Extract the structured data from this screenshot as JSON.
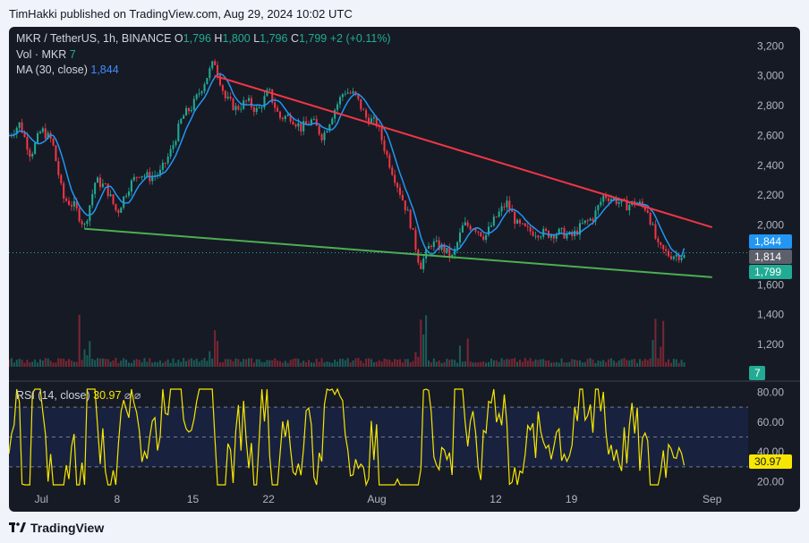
{
  "header": {
    "published": "TimHakki published on TradingView.com, Aug 29, 2024 10:02 UTC"
  },
  "footer": {
    "brand": "TradingView",
    "logo_icon": "tradingview-logo-icon"
  },
  "legend": {
    "symbol": "MKR / TetherUS, 1h, BINANCE",
    "o_label": "O",
    "o": "1,796",
    "h_label": "H",
    "h": "1,800",
    "l_label": "L",
    "l": "1,796",
    "c_label": "C",
    "c": "1,799",
    "change": "+2 (+0.11%)",
    "vol_label": "Vol · MKR",
    "vol": "7",
    "ma_label": "MA (30, close)",
    "ma": "1,844",
    "rsi_label": "RSI (14, close)",
    "rsi": "30.97",
    "rsi_icons": "⌀ ⌀"
  },
  "colors": {
    "background": "#161a25",
    "up": "#22ab94",
    "down": "#f23645",
    "ma": "#2196f3",
    "trend_upper": "#f23645",
    "trend_lower": "#4caf50",
    "rsi": "#f7e600"
  },
  "price_tags": [
    {
      "label": "1,844",
      "color": "#2196f3"
    },
    {
      "label": "1,814",
      "color": "#5d606b"
    },
    {
      "label": "1,799",
      "color": "#22ab94"
    }
  ],
  "volume_tag": "7",
  "rsi_tag": "30.97",
  "chart_data": [
    {
      "type": "candlestick",
      "title": "MKR / TetherUS, 1h, BINANCE",
      "price_axis_ticks": [
        "3,200",
        "3,000",
        "2,800",
        "2,600",
        "2,400",
        "2,200",
        "2,000",
        "1,600",
        "1,400",
        "1,200"
      ],
      "time_axis_ticks": [
        "Jul",
        "8",
        "15",
        "22",
        "Aug",
        "12",
        "19",
        "Sep"
      ],
      "ylim": [
        1050,
        3280
      ],
      "price_path": [
        [
          "2024-06-28",
          2600
        ],
        [
          "2024-06-29",
          2680
        ],
        [
          "2024-06-30",
          2470
        ],
        [
          "2024-07-01",
          2640
        ],
        [
          "2024-07-02",
          2560
        ],
        [
          "2024-07-03",
          2180
        ],
        [
          "2024-07-04",
          2130
        ],
        [
          "2024-07-05",
          1990
        ],
        [
          "2024-07-06",
          2300
        ],
        [
          "2024-07-07",
          2250
        ],
        [
          "2024-07-08",
          2080
        ],
        [
          "2024-07-09",
          2250
        ],
        [
          "2024-07-10",
          2350
        ],
        [
          "2024-07-11",
          2320
        ],
        [
          "2024-07-12",
          2350
        ],
        [
          "2024-07-13",
          2500
        ],
        [
          "2024-07-14",
          2720
        ],
        [
          "2024-07-15",
          2800
        ],
        [
          "2024-07-16",
          2950
        ],
        [
          "2024-07-17",
          3100
        ],
        [
          "2024-07-18",
          2850
        ],
        [
          "2024-07-19",
          2780
        ],
        [
          "2024-07-20",
          2830
        ],
        [
          "2024-07-21",
          2760
        ],
        [
          "2024-07-22",
          2900
        ],
        [
          "2024-07-23",
          2720
        ],
        [
          "2024-07-24",
          2730
        ],
        [
          "2024-07-25",
          2650
        ],
        [
          "2024-07-26",
          2700
        ],
        [
          "2024-07-27",
          2590
        ],
        [
          "2024-07-28",
          2760
        ],
        [
          "2024-07-29",
          2900
        ],
        [
          "2024-07-30",
          2870
        ],
        [
          "2024-07-31",
          2720
        ],
        [
          "2024-08-01",
          2680
        ],
        [
          "2024-08-02",
          2450
        ],
        [
          "2024-08-03",
          2250
        ],
        [
          "2024-08-04",
          2050
        ],
        [
          "2024-08-05",
          1720
        ],
        [
          "2024-08-06",
          1880
        ],
        [
          "2024-08-07",
          1850
        ],
        [
          "2024-08-08",
          1780
        ],
        [
          "2024-08-09",
          2000
        ],
        [
          "2024-08-10",
          1990
        ],
        [
          "2024-08-11",
          1920
        ],
        [
          "2024-08-12",
          2050
        ],
        [
          "2024-08-13",
          2150
        ],
        [
          "2024-08-14",
          2000
        ],
        [
          "2024-08-15",
          1960
        ],
        [
          "2024-08-16",
          1950
        ],
        [
          "2024-08-17",
          1940
        ],
        [
          "2024-08-18",
          1950
        ],
        [
          "2024-08-19",
          1920
        ],
        [
          "2024-08-20",
          2000
        ],
        [
          "2024-08-21",
          2050
        ],
        [
          "2024-08-22",
          2200
        ],
        [
          "2024-08-23",
          2170
        ],
        [
          "2024-08-24",
          2130
        ],
        [
          "2024-08-25",
          2150
        ],
        [
          "2024-08-26",
          2110
        ],
        [
          "2024-08-27",
          1850
        ],
        [
          "2024-08-28",
          1800
        ],
        [
          "2024-08-29",
          1799
        ]
      ],
      "ma_30": {
        "last": 1844
      },
      "trendlines": [
        {
          "name": "upper",
          "color": "#f23645",
          "from": [
            "2024-07-17",
            3000
          ],
          "to": [
            "2024-09-01",
            1985
          ]
        },
        {
          "name": "lower",
          "color": "#4caf50",
          "from": [
            "2024-07-05",
            1975
          ],
          "to": [
            "2024-09-01",
            1650
          ]
        }
      ],
      "last_price": 1799,
      "price_line": 1814
    },
    {
      "type": "bar",
      "title": "Vol · MKR",
      "last": 7,
      "spikes": [
        [
          "2024-07-05",
          1450
        ],
        [
          "2024-07-17",
          1320
        ],
        [
          "2024-08-05",
          1470
        ],
        [
          "2024-08-09",
          1250
        ],
        [
          "2024-08-27",
          1470
        ]
      ]
    },
    {
      "type": "line",
      "title": "RSI (14, close)",
      "axis_ticks": [
        "80.00",
        "60.00",
        "40.00",
        "20.00"
      ],
      "ylim": [
        15,
        85
      ],
      "bands": [
        30,
        50,
        70
      ],
      "last": 30.97
    }
  ]
}
